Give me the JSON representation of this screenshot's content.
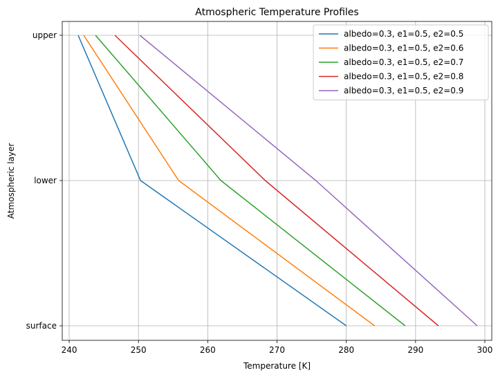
{
  "chart_data": {
    "type": "line",
    "title": "Atmospheric Temperature Profiles",
    "xlabel": "Temperature [K]",
    "ylabel": "Atmospheric layer",
    "xlim": [
      239,
      301
    ],
    "xticks": [
      240,
      250,
      260,
      270,
      280,
      290,
      300
    ],
    "categories": [
      "surface",
      "lower",
      "upper"
    ],
    "grid": true,
    "legend_position": "upper right",
    "series": [
      {
        "name": "albedo=0.3, e1=0.5, e2=0.5",
        "color": "#1f77b4",
        "x": [
          280.0,
          250.3,
          241.3
        ]
      },
      {
        "name": "albedo=0.3, e1=0.5, e2=0.6",
        "color": "#ff7f0e",
        "x": [
          284.1,
          255.8,
          242.1
        ]
      },
      {
        "name": "albedo=0.3, e1=0.5, e2=0.7",
        "color": "#2ca02c",
        "x": [
          288.5,
          261.9,
          243.8
        ]
      },
      {
        "name": "albedo=0.3, e1=0.5, e2=0.8",
        "color": "#d62728",
        "x": [
          293.3,
          268.3,
          246.6
        ]
      },
      {
        "name": "albedo=0.3, e1=0.5, e2=0.9",
        "color": "#9467bd",
        "x": [
          298.9,
          275.6,
          250.2
        ]
      }
    ]
  }
}
